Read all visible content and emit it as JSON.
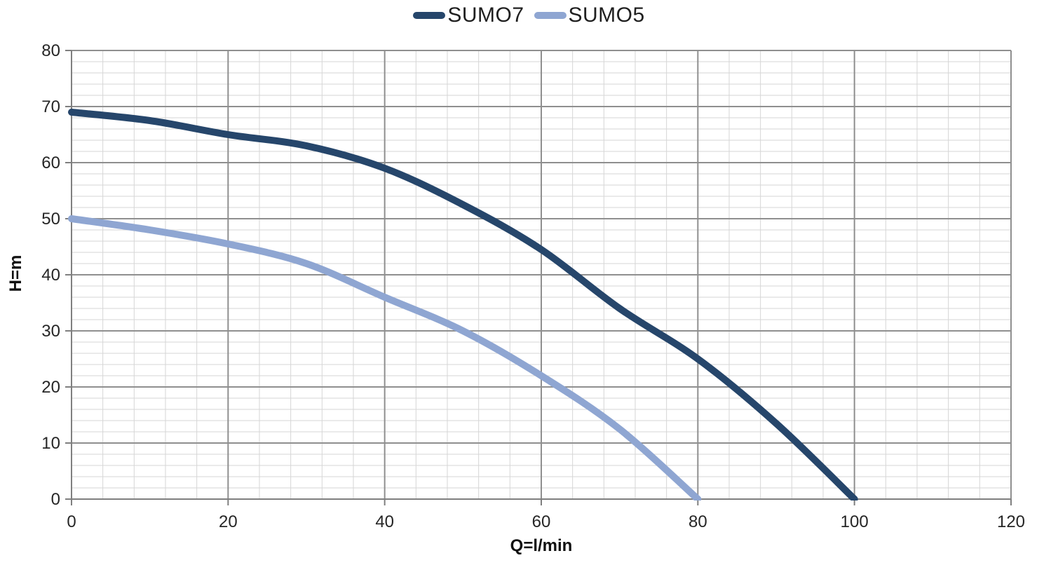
{
  "chart_data": {
    "type": "line",
    "title": "",
    "xlabel": "Q=l/min",
    "ylabel": "H=m",
    "xlim": [
      0,
      120
    ],
    "ylim": [
      0,
      80
    ],
    "x_ticks": [
      0,
      20,
      40,
      60,
      80,
      100,
      120
    ],
    "y_ticks": [
      0,
      10,
      20,
      30,
      40,
      50,
      60,
      70,
      80
    ],
    "x_minor_step": 4,
    "y_minor_step": 2,
    "grid": "major-and-minor",
    "legend_position": "top-center",
    "series": [
      {
        "name": "SUMO7",
        "color": "#26466b",
        "x": [
          0,
          10,
          20,
          30,
          40,
          50,
          60,
          70,
          80,
          90,
          100
        ],
        "y": [
          69,
          67.5,
          65,
          63,
          59,
          52.5,
          44.5,
          34,
          25,
          13.5,
          0
        ]
      },
      {
        "name": "SUMO5",
        "color": "#8fa6d2",
        "x": [
          0,
          10,
          20,
          30,
          40,
          50,
          60,
          70,
          80
        ],
        "y": [
          50,
          48,
          45.5,
          42,
          36,
          30,
          22,
          12.5,
          0
        ]
      }
    ]
  },
  "colors": {
    "major_grid": "#8f8f8f",
    "minor_grid": "#d6d6d6",
    "axis": "#7f7f7f",
    "tick_text": "#262626",
    "background": "#ffffff"
  }
}
